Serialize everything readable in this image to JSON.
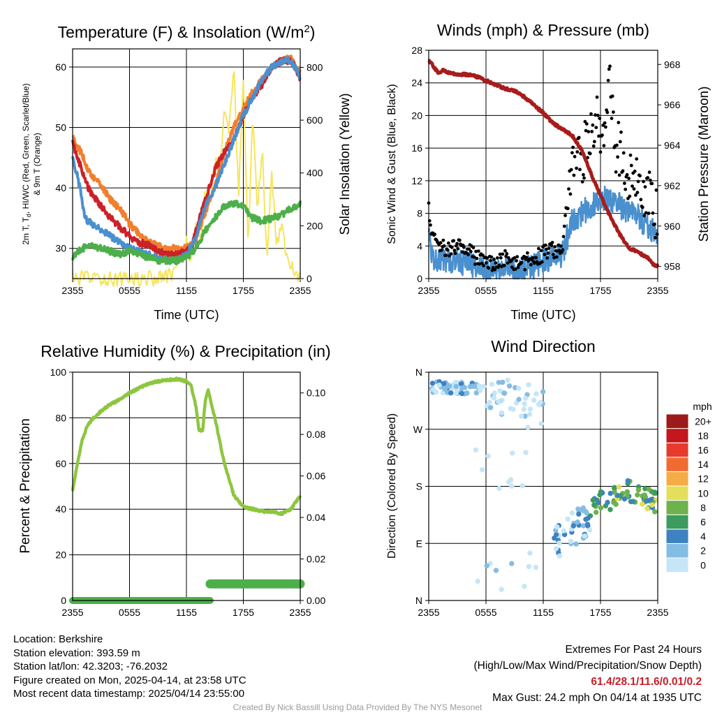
{
  "colors": {
    "red": "#cc2127",
    "orange": "#f07f2e",
    "green": "#4daf4a",
    "light_green": "#8dc63f",
    "blue": "#4a90cf",
    "yellow": "#f5e55c",
    "maroon": "#a81c1c",
    "black": "#000000",
    "extremes": "#c8202a"
  },
  "chart_data": [
    {
      "id": "temp",
      "type": "line",
      "title": "Temperature (F) & Insolation (W/m",
      "title_sup": "2",
      "title_end": ")",
      "xlabel": "Time (UTC)",
      "ylabel": "2m T, T",
      "ylabel_sub": "d",
      "ylabel_rest": ", HI/WC (Red, Green, Scarlet/Blue)",
      "ylabel_line2": "& 9m T (Orange)",
      "y2label": "Solar Insolation (Yellow)",
      "x_ticks": [
        "2355",
        "0555",
        "1155",
        "1755",
        "2355"
      ],
      "ylim": [
        25,
        63
      ],
      "y_ticks": [
        30,
        40,
        50,
        60
      ],
      "y2lim": [
        0,
        870
      ],
      "y2_ticks": [
        0,
        200,
        400,
        600,
        800
      ],
      "series": [
        {
          "key": "orange",
          "x": [
            0,
            0.5,
            1,
            1.5,
            2,
            3,
            4,
            5,
            6,
            7,
            8,
            9,
            10,
            11,
            12,
            13,
            14,
            15,
            16,
            17,
            18,
            19,
            20,
            21,
            22,
            23,
            24
          ],
          "y": [
            48.5,
            47,
            45.5,
            43.5,
            42,
            40.5,
            38,
            36.5,
            34,
            32.5,
            31,
            30.5,
            30,
            30,
            30,
            31.5,
            36,
            40,
            46,
            50,
            53,
            56,
            58,
            60,
            61,
            61.5,
            59
          ]
        },
        {
          "key": "red",
          "x": [
            0,
            0.5,
            1,
            1.5,
            2,
            3,
            4,
            5,
            6,
            7,
            8,
            9,
            10,
            11,
            12,
            12.5,
            13,
            14,
            15,
            16,
            17,
            18,
            19,
            20,
            21,
            22,
            23,
            23.5,
            24
          ],
          "y": [
            47.5,
            45,
            43,
            40.5,
            39,
            37,
            35,
            33.5,
            32,
            31,
            30.5,
            29.5,
            29,
            29,
            29.5,
            30,
            33,
            38,
            43,
            46,
            48,
            52,
            55,
            57,
            60,
            61,
            61,
            60,
            58
          ]
        },
        {
          "key": "blue",
          "x": [
            0,
            0.5,
            1,
            1.3,
            2,
            3,
            4,
            5,
            6,
            7,
            8,
            9,
            10,
            11,
            12,
            13,
            14,
            15,
            16,
            17,
            18,
            19,
            20,
            21,
            22,
            23,
            24
          ],
          "y": [
            45,
            42,
            38,
            35,
            34,
            33,
            32,
            31,
            30,
            29.5,
            29,
            28.5,
            28,
            28,
            29,
            32,
            37,
            40,
            44,
            48,
            52,
            55,
            58,
            60,
            61,
            61,
            58.5
          ]
        },
        {
          "key": "green",
          "x": [
            0,
            0.5,
            1,
            2,
            3,
            4,
            5,
            6,
            7,
            8,
            9,
            10,
            11,
            12,
            13,
            14,
            15,
            16,
            17,
            18,
            19,
            20,
            21,
            22,
            23,
            24
          ],
          "y": [
            28.5,
            29.5,
            30,
            30.5,
            30,
            29.5,
            29,
            29.5,
            29,
            28.5,
            28,
            28,
            28,
            28.5,
            30,
            33,
            35,
            37,
            37.5,
            37,
            35,
            34.5,
            35,
            35.5,
            36.5,
            37.5
          ]
        },
        {
          "key": "yellow",
          "axis": "y2",
          "x": [
            0,
            8,
            10,
            11,
            11.5,
            12,
            12.5,
            13,
            13.5,
            14,
            14.5,
            15,
            15.5,
            16,
            16.5,
            17,
            17.5,
            18,
            18.5,
            19,
            19.5,
            20,
            20.5,
            21,
            21.5,
            22,
            22.5,
            23,
            23.5,
            24
          ],
          "y": [
            0,
            0,
            5,
            40,
            80,
            130,
            80,
            200,
            140,
            330,
            300,
            460,
            420,
            620,
            550,
            800,
            300,
            780,
            120,
            620,
            250,
            500,
            50,
            400,
            140,
            200,
            80,
            60,
            30,
            5
          ]
        }
      ]
    },
    {
      "id": "winds",
      "type": "line",
      "title": "Winds (mph) & Pressure (mb)",
      "xlabel": "Time (UTC)",
      "ylabel": "Sonic Wind & Gust (Blue, Black)",
      "y2label": "Station Pressure (Maroon)",
      "x_ticks": [
        "2355",
        "0555",
        "1155",
        "1755",
        "2355"
      ],
      "ylim": [
        0,
        28
      ],
      "y_ticks": [
        0,
        4,
        8,
        12,
        16,
        20,
        24,
        28
      ],
      "y2lim": [
        957.4,
        968.7
      ],
      "y2_ticks": [
        958,
        960,
        962,
        964,
        966,
        968
      ],
      "series": [
        {
          "key": "blue",
          "name_role": "wind",
          "x": [
            0,
            0.5,
            1,
            2,
            3,
            4,
            5,
            6,
            7,
            8,
            9,
            10,
            11,
            12,
            13,
            14,
            14.5,
            15,
            16,
            17,
            18,
            19,
            20,
            21,
            22,
            23,
            24
          ],
          "y": [
            5,
            2.5,
            2,
            2.5,
            2,
            2,
            1.5,
            1,
            1,
            1.5,
            1,
            1,
            1.5,
            2,
            2.5,
            3,
            5,
            7,
            8,
            9,
            10,
            9.5,
            9,
            8,
            7.5,
            6.5,
            5.5
          ]
        },
        {
          "key": "black",
          "name_role": "gust",
          "x": [
            0,
            0.3,
            1,
            2,
            3,
            4,
            5,
            6,
            7,
            8,
            9,
            10,
            11,
            12,
            13,
            14,
            14.5,
            15,
            15.5,
            16,
            16.5,
            17,
            17.5,
            18,
            18.5,
            19,
            19.5,
            20,
            20.5,
            21,
            21.5,
            22,
            22.5,
            23,
            23.5,
            24
          ],
          "y": [
            8.5,
            5.5,
            4,
            3.5,
            4,
            3.5,
            2.5,
            2,
            2,
            2.5,
            2,
            2,
            2.5,
            3,
            3.5,
            3.5,
            9,
            12,
            15,
            14,
            17,
            18,
            20,
            16,
            17,
            24.2,
            15,
            16,
            14,
            13,
            12,
            12,
            11,
            10,
            9,
            8
          ]
        },
        {
          "key": "maroon",
          "axis": "y2",
          "x": [
            0,
            0.5,
            1,
            1.5,
            2,
            3,
            4,
            5,
            6,
            7,
            8,
            9,
            10,
            11,
            12,
            13,
            14,
            15,
            16,
            17,
            18,
            19,
            20,
            21,
            22,
            23,
            23.5,
            24
          ],
          "y": [
            968.2,
            967.9,
            967.6,
            967.7,
            967.6,
            967.5,
            967.5,
            967.4,
            967.2,
            967.0,
            966.8,
            966.7,
            966.4,
            966.0,
            965.6,
            965.1,
            964.8,
            964.5,
            963.8,
            962.6,
            961.5,
            960.5,
            959.6,
            958.9,
            958.7,
            958.4,
            958.1,
            958.0
          ]
        }
      ]
    },
    {
      "id": "rh",
      "type": "line",
      "title": "Relative Humidity (%) & Precipitation (in)",
      "ylabel": "Percent & Precipitation",
      "x_ticks": [
        "2355",
        "0555",
        "1155",
        "1755",
        "2355"
      ],
      "ylim": [
        0,
        100
      ],
      "y_ticks": [
        0,
        20,
        40,
        60,
        80,
        100
      ],
      "y2lim": [
        0,
        0.11
      ],
      "y2_ticks": [
        "0.00",
        "0.02",
        "0.04",
        "0.06",
        "0.08",
        "0.10"
      ],
      "series": [
        {
          "key": "light_green",
          "name_role": "rh",
          "x": [
            0,
            0.5,
            1,
            1.5,
            2,
            2.5,
            3,
            4,
            5,
            6,
            7,
            8,
            9,
            10,
            11,
            12,
            12.5,
            13,
            13.3,
            13.7,
            14,
            14.3,
            15,
            16,
            17,
            18,
            19,
            20,
            21,
            22,
            23,
            24
          ],
          "y": [
            48,
            60,
            70,
            76,
            79,
            81,
            83,
            86,
            88,
            91,
            93,
            95,
            96,
            96.5,
            97,
            96,
            94,
            85,
            75,
            74,
            88,
            92,
            80,
            60,
            46,
            41,
            40,
            39,
            39,
            38,
            40,
            46
          ]
        },
        {
          "key": "green",
          "axis": "y2",
          "name_role": "precip",
          "x": [
            0,
            14.5,
            14.5,
            24
          ],
          "y": [
            0,
            0,
            0.008,
            0.008
          ]
        }
      ]
    },
    {
      "id": "wdir",
      "type": "scatter",
      "title": "Wind Direction",
      "ylabel": "Direction (Colored By Speed)",
      "x_ticks": [
        "2355",
        "0555",
        "1155",
        "1755",
        "2355"
      ],
      "y_ticks": [
        "N",
        "E",
        "S",
        "W",
        "N"
      ],
      "ylim": [
        0,
        360
      ],
      "colorbar": {
        "title": "mph",
        "labels": [
          "0",
          "2",
          "4",
          "6",
          "8",
          "10",
          "12",
          "14",
          "16",
          "18",
          "20+"
        ],
        "colors": [
          "#c6e6f7",
          "#84bde4",
          "#3f82c2",
          "#3c9b5e",
          "#6db24c",
          "#e3df5a",
          "#f6ac45",
          "#f16b31",
          "#e83a2c",
          "#c4161c",
          "#9c1a1a"
        ]
      },
      "clusters": [
        {
          "x": [
            0.3,
            5.5
          ],
          "y": [
            325,
            345
          ],
          "speed": [
            1,
            5
          ]
        },
        {
          "x": [
            5.5,
            12
          ],
          "y": [
            290,
            350
          ],
          "speed": [
            0,
            3
          ]
        },
        {
          "x": [
            4,
            12
          ],
          "y": [
            170,
            280
          ],
          "speed": [
            0,
            2
          ]
        },
        {
          "x": [
            5,
            12
          ],
          "y": [
            0,
            75
          ],
          "speed": [
            0,
            3
          ]
        },
        {
          "x": [
            13,
            17
          ],
          "y": [
            45,
            145
          ],
          "speed": [
            1,
            5
          ]
        },
        {
          "x": [
            16.5,
            24
          ],
          "y": [
            130,
            190
          ],
          "speed": [
            4,
            11
          ]
        }
      ]
    }
  ],
  "info_left": [
    "Location: Berkshire",
    "Station elevation: 393.59 m",
    "Station lat/lon: 42.3203; -76.2032",
    "Figure created on Mon, 2025-04-14, at 23:58 UTC",
    "Most recent data timestamp: 2025/04/14 23:55:00"
  ],
  "extremes": {
    "title": "Extremes For Past 24 Hours",
    "subtitle": "(High/Low/Max Wind/Precipitation/Snow Depth)",
    "values": "61.4/28.1/11.6/0.01/0.2",
    "max_gust": "Max Gust: 24.2 mph On 04/14 at 1935 UTC"
  },
  "credit": "Created By Nick Bassill Using Data Provided By The NYS Mesonet"
}
